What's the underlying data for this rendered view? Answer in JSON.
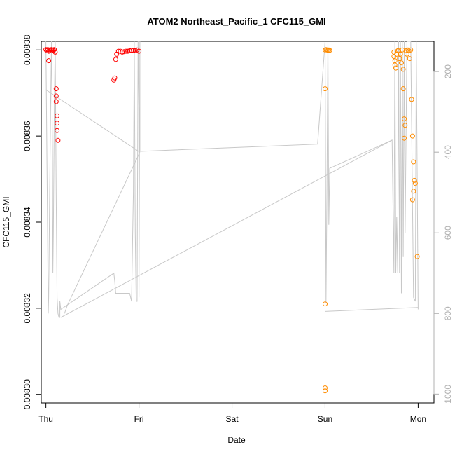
{
  "chart_data": {
    "type": "scatter",
    "title": "ATOM2 Northeast_Pacific_1 CFC115_GMI",
    "xlabel": "Date",
    "ylabel": "CFC115_GMI",
    "x_ticks": [
      "Thu",
      "Fri",
      "Sat",
      "Sun",
      "Mon"
    ],
    "y_ticks": [
      "0.00830",
      "0.00832",
      "0.00834",
      "0.00836",
      "0.00838"
    ],
    "y_tick_values": [
      0.0083,
      0.00832,
      0.00834,
      0.00836,
      0.00838
    ],
    "y2_ticks": [
      "200",
      "400",
      "600",
      "800",
      "1000"
    ],
    "y2_tick_values": [
      200,
      400,
      600,
      800,
      1000
    ],
    "xlim": [
      -0.05,
      4.17
    ],
    "ylim": [
      0.008298,
      0.008382
    ],
    "y2lim": [
      1022,
      125
    ],
    "grid": false,
    "legend": "none",
    "colors": {
      "series_red": "#ff0000",
      "series_orange": "#ff8c00",
      "pressure_line": "#c8c8c8",
      "right_axis": "#b0b0b0"
    },
    "series": [
      {
        "color": "red",
        "marker": "open-circle",
        "points": [
          [
            0.0,
            0.0083801
          ],
          [
            0.01,
            0.0083798
          ],
          [
            0.02,
            0.0083801
          ],
          [
            0.03,
            0.0083797
          ],
          [
            0.03,
            0.0083775
          ],
          [
            0.04,
            0.00838
          ],
          [
            0.05,
            0.00838
          ],
          [
            0.06,
            0.0083801
          ],
          [
            0.07,
            0.00838
          ],
          [
            0.08,
            0.0083799
          ],
          [
            0.09,
            0.0083801
          ],
          [
            0.1,
            0.0083795
          ],
          [
            0.11,
            0.008371
          ],
          [
            0.11,
            0.0083693
          ],
          [
            0.11,
            0.008368
          ],
          [
            0.12,
            0.0083647
          ],
          [
            0.12,
            0.008363
          ],
          [
            0.12,
            0.0083613
          ],
          [
            0.13,
            0.008359
          ],
          [
            0.73,
            0.008373
          ],
          [
            0.74,
            0.0083735
          ],
          [
            0.75,
            0.0083778
          ],
          [
            0.76,
            0.008379
          ],
          [
            0.78,
            0.0083797
          ],
          [
            0.8,
            0.0083797
          ],
          [
            0.82,
            0.0083795
          ],
          [
            0.84,
            0.0083796
          ],
          [
            0.86,
            0.0083797
          ],
          [
            0.88,
            0.0083797
          ],
          [
            0.9,
            0.0083798
          ],
          [
            0.92,
            0.0083799
          ],
          [
            0.94,
            0.0083799
          ],
          [
            0.96,
            0.0083799
          ],
          [
            0.98,
            0.00838
          ],
          [
            1.0,
            0.0083797
          ]
        ]
      },
      {
        "color": "orange",
        "marker": "open-circle",
        "points": [
          [
            3.0,
            0.00838
          ],
          [
            3.01,
            0.0083801
          ],
          [
            3.02,
            0.00838
          ],
          [
            3.03,
            0.0083799
          ],
          [
            3.04,
            0.00838
          ],
          [
            3.05,
            0.0083799
          ],
          [
            3.0,
            0.008371
          ],
          [
            3.0,
            0.008321
          ],
          [
            3.0,
            0.0083015
          ],
          [
            3.0,
            0.0083008
          ],
          [
            3.74,
            0.0083795
          ],
          [
            3.74,
            0.0083785
          ],
          [
            3.75,
            0.0083775
          ],
          [
            3.75,
            0.0083765
          ],
          [
            3.76,
            0.0083758
          ],
          [
            3.77,
            0.008379
          ],
          [
            3.78,
            0.0083798
          ],
          [
            3.79,
            0.0083799
          ],
          [
            3.8,
            0.008378
          ],
          [
            3.81,
            0.008379
          ],
          [
            3.82,
            0.008377
          ],
          [
            3.83,
            0.00838
          ],
          [
            3.84,
            0.0083755
          ],
          [
            3.84,
            0.008371
          ],
          [
            3.85,
            0.008364
          ],
          [
            3.85,
            0.0083595
          ],
          [
            3.86,
            0.0083625
          ],
          [
            3.87,
            0.0083798
          ],
          [
            3.88,
            0.008379
          ],
          [
            3.89,
            0.00838
          ],
          [
            3.9,
            0.0083798
          ],
          [
            3.91,
            0.008378
          ],
          [
            3.92,
            0.00838
          ],
          [
            3.93,
            0.0083685
          ],
          [
            3.94,
            0.00836
          ],
          [
            3.95,
            0.008354
          ],
          [
            3.96,
            0.0083497
          ],
          [
            3.97,
            0.008349
          ],
          [
            3.95,
            0.0083472
          ],
          [
            3.94,
            0.0083452
          ],
          [
            3.99,
            0.008332
          ]
        ]
      }
    ],
    "pressure_line": {
      "axis": "right",
      "points": [
        [
          0.0,
          125
        ],
        [
          0.01,
          400
        ],
        [
          0.02,
          650
        ],
        [
          0.025,
          800
        ],
        [
          0.03,
          760
        ],
        [
          0.04,
          500
        ],
        [
          0.05,
          300
        ],
        [
          0.06,
          125
        ],
        [
          0.07,
          400
        ],
        [
          0.075,
          700
        ],
        [
          0.08,
          600
        ],
        [
          0.09,
          300
        ],
        [
          0.1,
          125
        ],
        [
          0.11,
          500
        ],
        [
          0.12,
          760
        ],
        [
          0.13,
          800
        ],
        [
          0.14,
          810
        ],
        [
          0.15,
          810
        ],
        [
          0.15,
          770
        ],
        [
          0.16,
          790
        ],
        [
          0.73,
          700
        ],
        [
          0.74,
          720
        ],
        [
          0.75,
          750
        ],
        [
          0.77,
          750
        ],
        [
          0.8,
          750
        ],
        [
          0.82,
          750
        ],
        [
          0.85,
          750
        ],
        [
          0.9,
          750
        ],
        [
          0.92,
          770
        ],
        [
          0.94,
          500
        ],
        [
          0.95,
          125
        ],
        [
          0.96,
          600
        ],
        [
          0.97,
          770
        ],
        [
          0.98,
          770
        ],
        [
          0.99,
          125
        ],
        [
          1.0,
          300
        ],
        [
          1.0,
          760
        ],
        [
          1.01,
          125
        ],
        [
          1.01,
          398
        ],
        [
          2.92,
          380
        ],
        [
          3.0,
          125
        ],
        [
          3.01,
          775
        ],
        [
          3.02,
          500
        ],
        [
          3.03,
          125
        ],
        [
          3.04,
          580
        ],
        [
          3.05,
          440
        ],
        [
          3.72,
          370
        ],
        [
          3.74,
          700
        ],
        [
          3.75,
          125
        ],
        [
          3.76,
          700
        ],
        [
          3.77,
          560
        ],
        [
          3.78,
          700
        ],
        [
          3.79,
          125
        ],
        [
          3.8,
          700
        ],
        [
          3.81,
          125
        ],
        [
          3.82,
          750
        ],
        [
          3.83,
          125
        ],
        [
          3.84,
          660
        ],
        [
          3.85,
          125
        ],
        [
          3.86,
          600
        ],
        [
          3.88,
          125
        ],
        [
          3.9,
          125
        ],
        [
          3.92,
          125
        ],
        [
          3.95,
          760
        ],
        [
          3.97,
          770
        ],
        [
          3.98,
          125
        ],
        [
          4.0,
          790
        ]
      ],
      "connector_segments": [
        [
          [
            0.2,
            800
          ],
          [
            0.23,
            780
          ],
          [
            1.01,
            400
          ]
        ],
        [
          [
            0.0,
            245
          ],
          [
            1.01,
            400
          ]
        ],
        [
          [
            0.16,
            810
          ],
          [
            3.72,
            370
          ]
        ],
        [
          [
            3.0,
            795
          ],
          [
            4.0,
            785
          ]
        ]
      ]
    }
  }
}
